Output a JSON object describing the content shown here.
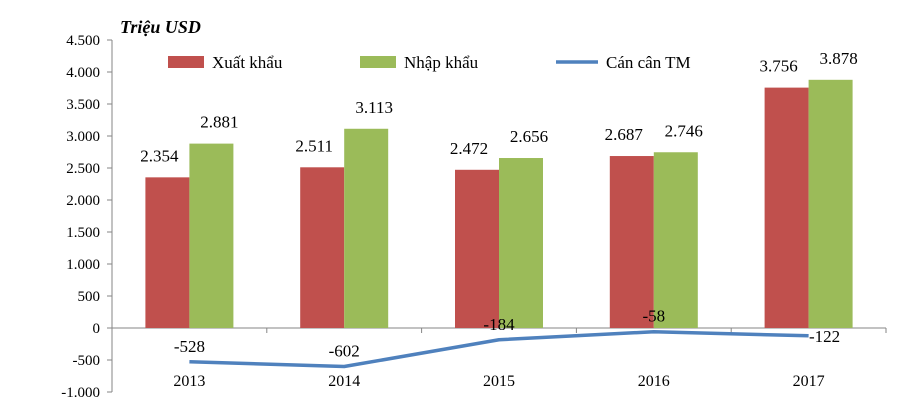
{
  "chart_data": {
    "type": "bar",
    "unit_label": "Triệu USD",
    "categories": [
      "2013",
      "2014",
      "2015",
      "2016",
      "2017"
    ],
    "series": [
      {
        "name": "Xuất khẩu",
        "kind": "bar",
        "color": "#c0504d",
        "values": [
          2354,
          2511,
          2472,
          2687,
          3756
        ],
        "labels": [
          "2.354",
          "2.511",
          "2.472",
          "2.687",
          "3.756"
        ]
      },
      {
        "name": "Nhập khẩu",
        "kind": "bar",
        "color": "#9bbb59",
        "values": [
          2881,
          3113,
          2656,
          2746,
          3878
        ],
        "labels": [
          "2.881",
          "3.113",
          "2.656",
          "2.746",
          "3.878"
        ]
      },
      {
        "name": "Cán cân TM",
        "kind": "line",
        "color": "#4f81bd",
        "values": [
          -528,
          -602,
          -184,
          -58,
          -122
        ],
        "labels": [
          "-528",
          "-602",
          "-184",
          "-58",
          "-122"
        ]
      }
    ],
    "yticks": [
      4500,
      4000,
      3500,
      3000,
      2500,
      2000,
      1500,
      1000,
      500,
      0,
      -500,
      -1000
    ],
    "ytick_labels": [
      "4.500",
      "4.000",
      "3.500",
      "3.000",
      "2.500",
      "2.000",
      "1.500",
      "1.000",
      "500",
      "0",
      "-500",
      "-1.000"
    ],
    "ylim": [
      -1000,
      4500
    ],
    "grid": false,
    "legend_position": "top"
  }
}
